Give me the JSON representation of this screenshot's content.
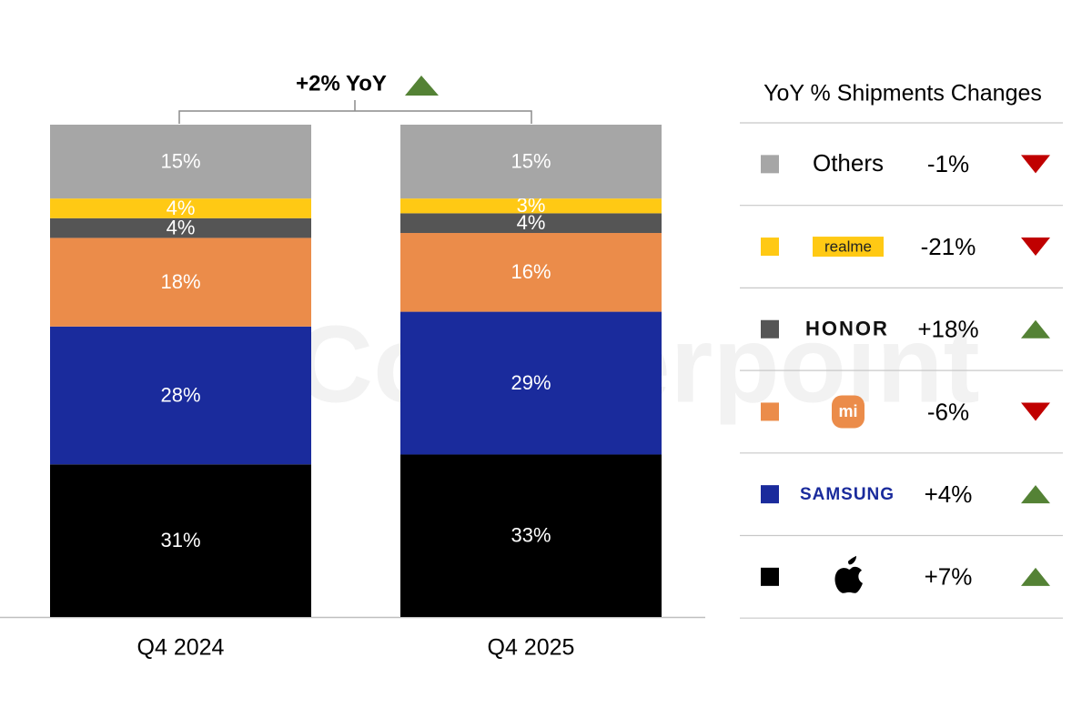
{
  "chart_data": {
    "type": "stacked_bar",
    "watermark": "Counterpoint",
    "categories": [
      "Q4 2024",
      "Q4 2025"
    ],
    "ylim": [
      0,
      100
    ],
    "total_change": 2,
    "total_change_label": "+2% YoY",
    "legend_title": "YoY % Shipments Changes",
    "series": [
      {
        "color": "#000000",
        "values": [
          31,
          33
        ],
        "value_labels": [
          "31%",
          "33%"
        ],
        "change": 7,
        "change_label": "+7%"
      },
      {
        "name": "SAMSUNG",
        "color": "#1a2b9c",
        "values": [
          28,
          29
        ],
        "value_labels": [
          "28%",
          "29%"
        ],
        "change": 4,
        "change_label": "+4%"
      },
      {
        "name": "mi",
        "color": "#eb8c4a",
        "values": [
          18,
          16
        ],
        "value_labels": [
          "18%",
          "16%"
        ],
        "change": -6,
        "change_label": "-6%"
      },
      {
        "name": "HONOR",
        "color": "#555555",
        "values": [
          4,
          4
        ],
        "value_labels": [
          "4%",
          "4%"
        ],
        "change": 18,
        "change_label": "+18%"
      },
      {
        "name": "realme",
        "color": "#ffc914",
        "values": [
          4,
          3
        ],
        "value_labels": [
          "4%",
          "3%"
        ],
        "change": -21,
        "change_label": "-21%"
      },
      {
        "name": "Others",
        "color": "#a6a6a6",
        "values": [
          15,
          15
        ],
        "value_labels": [
          "15%",
          "15%"
        ],
        "change": -1,
        "change_label": "-1%"
      }
    ]
  }
}
